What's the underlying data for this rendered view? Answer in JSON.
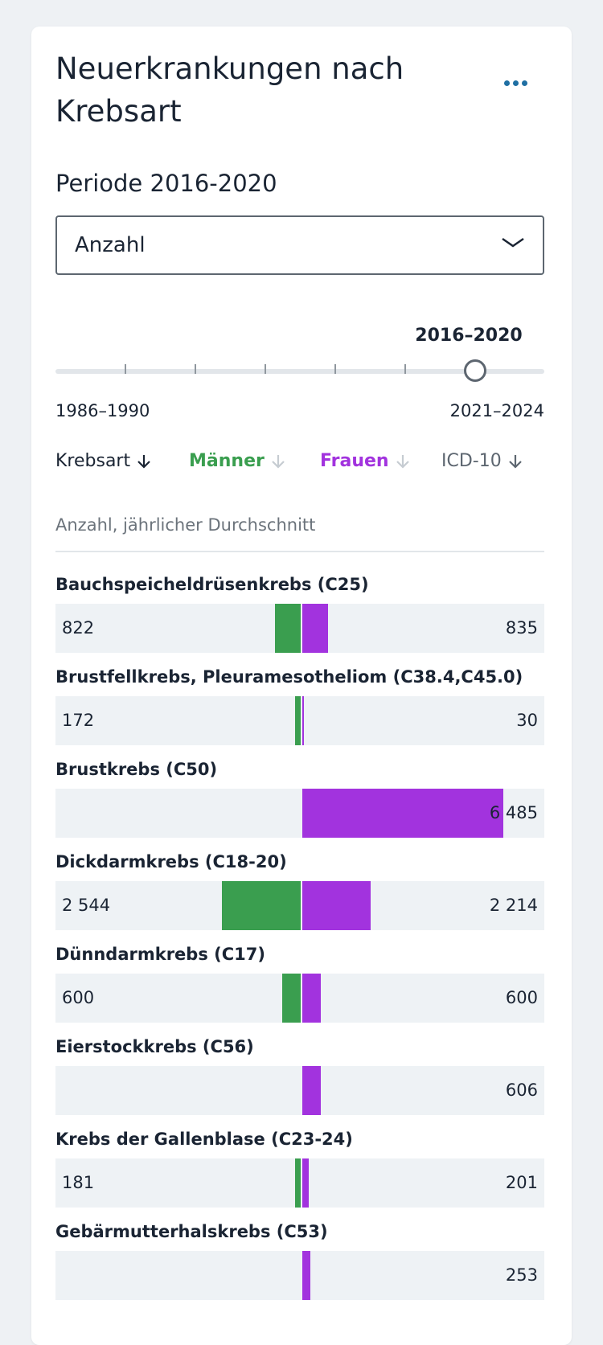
{
  "header": {
    "title": "Neuerkrankungen nach Krebsart",
    "subtitle": "Periode 2016-2020",
    "more_icon": "more-horizontal-icon"
  },
  "measure_select": {
    "value": "Anzahl",
    "icon": "chevron-down-icon"
  },
  "period_slider": {
    "current": "2016–2020",
    "min_label": "1986–1990",
    "max_label": "2021–2024",
    "steps": 8,
    "selected_index": 6
  },
  "sort_headers": {
    "krebsart": "Krebsart",
    "maenner": "Männer",
    "frauen": "Frauen",
    "icd": "ICD-10"
  },
  "unit_label": "Anzahl, jährlicher Durchschnitt",
  "colors": {
    "maenner": "#3a9e4f",
    "frauen": "#a233de",
    "track": "#eef2f5"
  },
  "chart_data": {
    "type": "bar",
    "orientation": "horizontal-diverging",
    "categories": [
      "Bauchspeicheldrüsenkrebs (C25)",
      "Brustfellkrebs, Pleuramesotheliom (C38.4,C45.0)",
      "Brustkrebs (C50)",
      "Dickdarmkrebs (C18-20)",
      "Dünndarmkrebs (C17)",
      "Eierstockkrebs (C56)",
      "Krebs der Gallenblase (C23-24)",
      "Gebärmutterhalskrebs (C53)"
    ],
    "series": [
      {
        "name": "Männer",
        "values": [
          822,
          172,
          null,
          2544,
          600,
          null,
          181,
          null
        ],
        "labels": [
          "822",
          "172",
          "",
          "2 544",
          "600",
          "",
          "181",
          ""
        ]
      },
      {
        "name": "Frauen",
        "values": [
          835,
          30,
          6485,
          2214,
          600,
          606,
          201,
          253
        ],
        "labels": [
          "835",
          "30",
          "6 485",
          "2 214",
          "600",
          "606",
          "201",
          "253"
        ]
      }
    ],
    "xlim": [
      -8000,
      8000
    ]
  }
}
